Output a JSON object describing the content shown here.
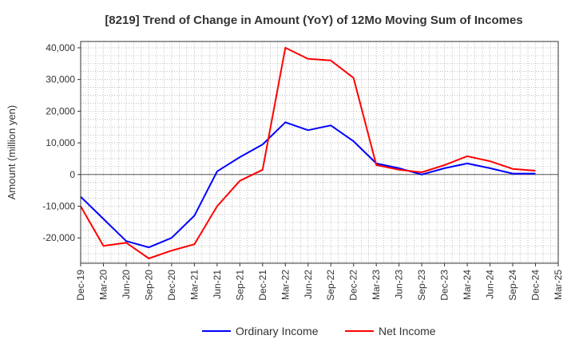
{
  "chart_data": {
    "type": "line",
    "title": "[8219]  Trend of Change in Amount (YoY) of 12Mo Moving Sum of Incomes",
    "xlabel": "",
    "ylabel": "Amount (million yen)",
    "ylim": [
      -28000,
      42000
    ],
    "yticks": [
      40000,
      30000,
      20000,
      10000,
      0,
      -10000,
      -20000
    ],
    "ytick_labels": [
      "40,000",
      "30,000",
      "20,000",
      "10,000",
      "0",
      "-10,000",
      "-20,000"
    ],
    "x": [
      "Dec-19",
      "Mar-20",
      "Jun-20",
      "Sep-20",
      "Dec-20",
      "Mar-21",
      "Jun-21",
      "Sep-21",
      "Dec-21",
      "Mar-22",
      "Jun-22",
      "Sep-22",
      "Dec-22",
      "Mar-23",
      "Jun-23",
      "Sep-23",
      "Dec-23",
      "Mar-24",
      "Jun-24",
      "Sep-24",
      "Dec-24",
      "Mar-25"
    ],
    "grid": true,
    "legend_position": "bottom",
    "series": [
      {
        "name": "Ordinary Income",
        "color": "#0000ff",
        "values": [
          -7000,
          -14000,
          -21000,
          -23000,
          -20000,
          -13000,
          1000,
          5500,
          9500,
          16500,
          14000,
          15500,
          10500,
          3500,
          2000,
          0,
          2000,
          3500,
          2000,
          300,
          300,
          null
        ]
      },
      {
        "name": "Net Income",
        "color": "#ff0000",
        "values": [
          -10000,
          -22500,
          -21500,
          -26500,
          -24000,
          -22000,
          -10000,
          -2000,
          1500,
          40000,
          36500,
          36000,
          30500,
          3000,
          1500,
          700,
          3000,
          5800,
          4200,
          1800,
          1200,
          null
        ]
      }
    ]
  }
}
